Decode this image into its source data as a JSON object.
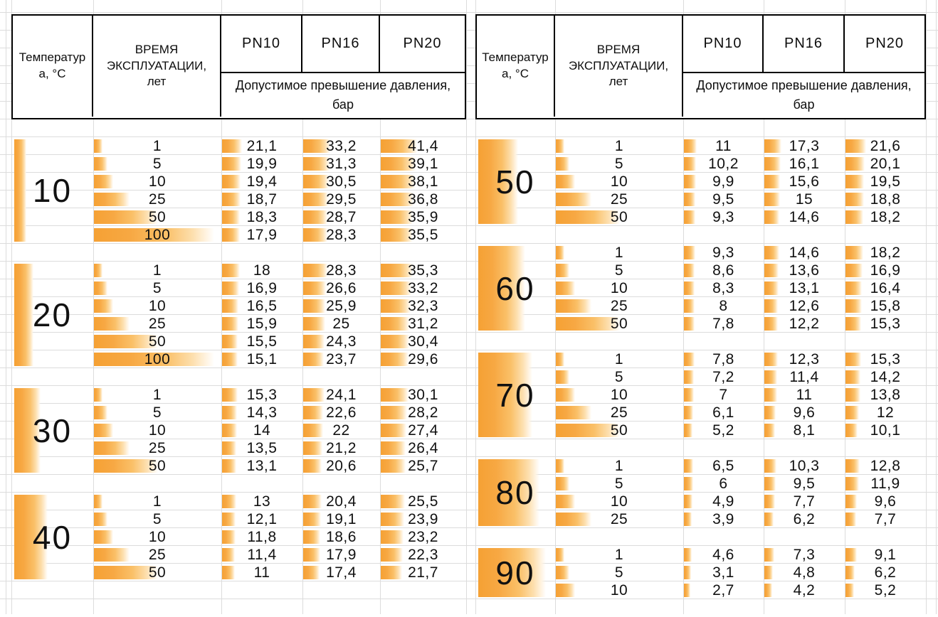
{
  "page": {
    "accent_color": "#F6A237",
    "grid_color": "#DCDCDC",
    "border_color": "#000000"
  },
  "header": {
    "temperature_label": "Температура, °С",
    "time_label": "ВРЕМЯ ЭКСПЛУАТАЦИИ, лет",
    "pn_labels": [
      "PN10",
      "PN16",
      "PN20"
    ],
    "sub_label": "Допустимое превышение давления, бар"
  },
  "tables": [
    {
      "name": "left",
      "blocks": [
        {
          "temp": "10",
          "rows": [
            [
              "1",
              "21,1",
              "33,2",
              "41,4"
            ],
            [
              "5",
              "19,9",
              "31,3",
              "39,1"
            ],
            [
              "10",
              "19,4",
              "30,5",
              "38,1"
            ],
            [
              "25",
              "18,7",
              "29,5",
              "36,8"
            ],
            [
              "50",
              "18,3",
              "28,7",
              "35,9"
            ],
            [
              "100",
              "17,9",
              "28,3",
              "35,5"
            ]
          ]
        },
        {
          "temp": "20",
          "rows": [
            [
              "1",
              "18",
              "28,3",
              "35,3"
            ],
            [
              "5",
              "16,9",
              "26,6",
              "33,2"
            ],
            [
              "10",
              "16,5",
              "25,9",
              "32,3"
            ],
            [
              "25",
              "15,9",
              "25",
              "31,2"
            ],
            [
              "50",
              "15,5",
              "24,3",
              "30,4"
            ],
            [
              "100",
              "15,1",
              "23,7",
              "29,6"
            ]
          ]
        },
        {
          "temp": "30",
          "rows": [
            [
              "1",
              "15,3",
              "24,1",
              "30,1"
            ],
            [
              "5",
              "14,3",
              "22,6",
              "28,2"
            ],
            [
              "10",
              "14",
              "22",
              "27,4"
            ],
            [
              "25",
              "13,5",
              "21,2",
              "26,4"
            ],
            [
              "50",
              "13,1",
              "20,6",
              "25,7"
            ]
          ]
        },
        {
          "temp": "40",
          "rows": [
            [
              "1",
              "13",
              "20,4",
              "25,5"
            ],
            [
              "5",
              "12,1",
              "19,1",
              "23,9"
            ],
            [
              "10",
              "11,8",
              "18,6",
              "23,2"
            ],
            [
              "25",
              "11,4",
              "17,9",
              "22,3"
            ],
            [
              "50",
              "11",
              "17,4",
              "21,7"
            ]
          ]
        }
      ]
    },
    {
      "name": "right",
      "blocks": [
        {
          "temp": "50",
          "rows": [
            [
              "1",
              "11",
              "17,3",
              "21,6"
            ],
            [
              "5",
              "10,2",
              "16,1",
              "20,1"
            ],
            [
              "10",
              "9,9",
              "15,6",
              "19,5"
            ],
            [
              "25",
              "9,5",
              "15",
              "18,8"
            ],
            [
              "50",
              "9,3",
              "14,6",
              "18,2"
            ]
          ]
        },
        {
          "temp": "60",
          "rows": [
            [
              "1",
              "9,3",
              "14,6",
              "18,2"
            ],
            [
              "5",
              "8,6",
              "13,6",
              "16,9"
            ],
            [
              "10",
              "8,3",
              "13,1",
              "16,4"
            ],
            [
              "25",
              "8",
              "12,6",
              "15,8"
            ],
            [
              "50",
              "7,8",
              "12,2",
              "15,3"
            ]
          ]
        },
        {
          "temp": "70",
          "rows": [
            [
              "1",
              "7,8",
              "12,3",
              "15,3"
            ],
            [
              "5",
              "7,2",
              "11,4",
              "14,2"
            ],
            [
              "10",
              "7",
              "11",
              "13,8"
            ],
            [
              "25",
              "6,1",
              "9,6",
              "12"
            ],
            [
              "50",
              "5,2",
              "8,1",
              "10,1"
            ]
          ]
        },
        {
          "temp": "80",
          "rows": [
            [
              "1",
              "6,5",
              "10,3",
              "12,8"
            ],
            [
              "5",
              "6",
              "9,5",
              "11,9"
            ],
            [
              "10",
              "4,9",
              "7,7",
              "9,6"
            ],
            [
              "25",
              "3,9",
              "6,2",
              "7,7"
            ]
          ]
        },
        {
          "temp": "90",
          "rows": [
            [
              "1",
              "4,6",
              "7,3",
              "9,1"
            ],
            [
              "5",
              "3,1",
              "4,8",
              "6,2"
            ],
            [
              "10",
              "2,7",
              "4,2",
              "5,2"
            ]
          ]
        }
      ]
    }
  ]
}
